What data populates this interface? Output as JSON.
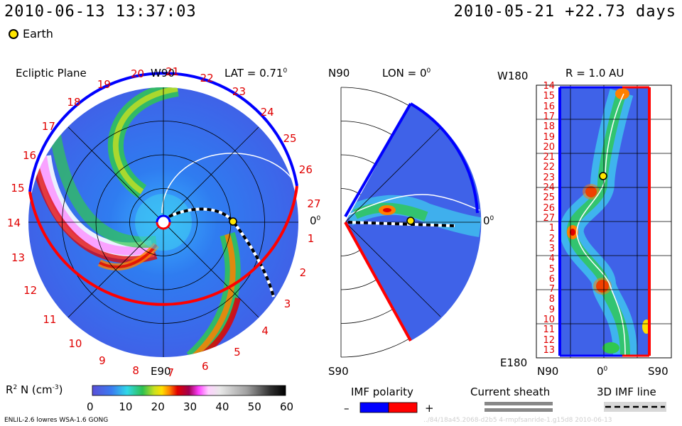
{
  "header": {
    "date_time": "2010-06-13 13:37:03",
    "reference": "2010-05-21 +22.73 days",
    "legend_earth": "Earth"
  },
  "panels": {
    "ecliptic": {
      "title": "Ecliptic Plane",
      "top_label": "W90",
      "bottom_label": "E90",
      "lat_label": "LAT = 0.71",
      "right_label": "0",
      "carrington_labels": [
        "15",
        "16",
        "17",
        "18",
        "19",
        "20",
        "21",
        "22",
        "23",
        "24",
        "25",
        "26",
        "27",
        "1",
        "2",
        "3",
        "4",
        "5",
        "6",
        "7",
        "8",
        "9",
        "10",
        "11",
        "12",
        "13",
        "14"
      ]
    },
    "meridional": {
      "top_label": "N90",
      "bottom_label": "S90",
      "lon_label": "LON = 0",
      "right_label": "0"
    },
    "radial": {
      "corner_top": "W180",
      "corner_bottom": "E180",
      "r_label": "R = 1.0 AU",
      "bottom_left": "N90",
      "bottom_mid": "0",
      "bottom_right": "S90",
      "rotation_labels": [
        "14",
        "15",
        "16",
        "17",
        "18",
        "19",
        "20",
        "21",
        "22",
        "23",
        "24",
        "25",
        "26",
        "27",
        "1",
        "2",
        "3",
        "4",
        "5",
        "6",
        "7",
        "8",
        "9",
        "10",
        "11",
        "12",
        "13"
      ]
    }
  },
  "colorbar": {
    "label": "R  N (cm  )",
    "label_sup_r": "2",
    "label_sup_cm": "-3",
    "ticks": [
      "0",
      "10",
      "20",
      "30",
      "40",
      "50",
      "60"
    ]
  },
  "imf_polarity": {
    "title": "IMF polarity",
    "minus": "–",
    "plus": "+",
    "colors": {
      "negative": "#0000ff",
      "positive": "#ff0000"
    }
  },
  "current_sheath": {
    "title": "Current sheath"
  },
  "imf_line": {
    "title": "3D IMF line"
  },
  "footer": {
    "model": "ENLIL-2.6 lowres WSA-1.6 GONG",
    "faint": "../84/18a45.2068-d2b5 4-rmpfsanride-1.g15d8    2010-06-13"
  }
}
